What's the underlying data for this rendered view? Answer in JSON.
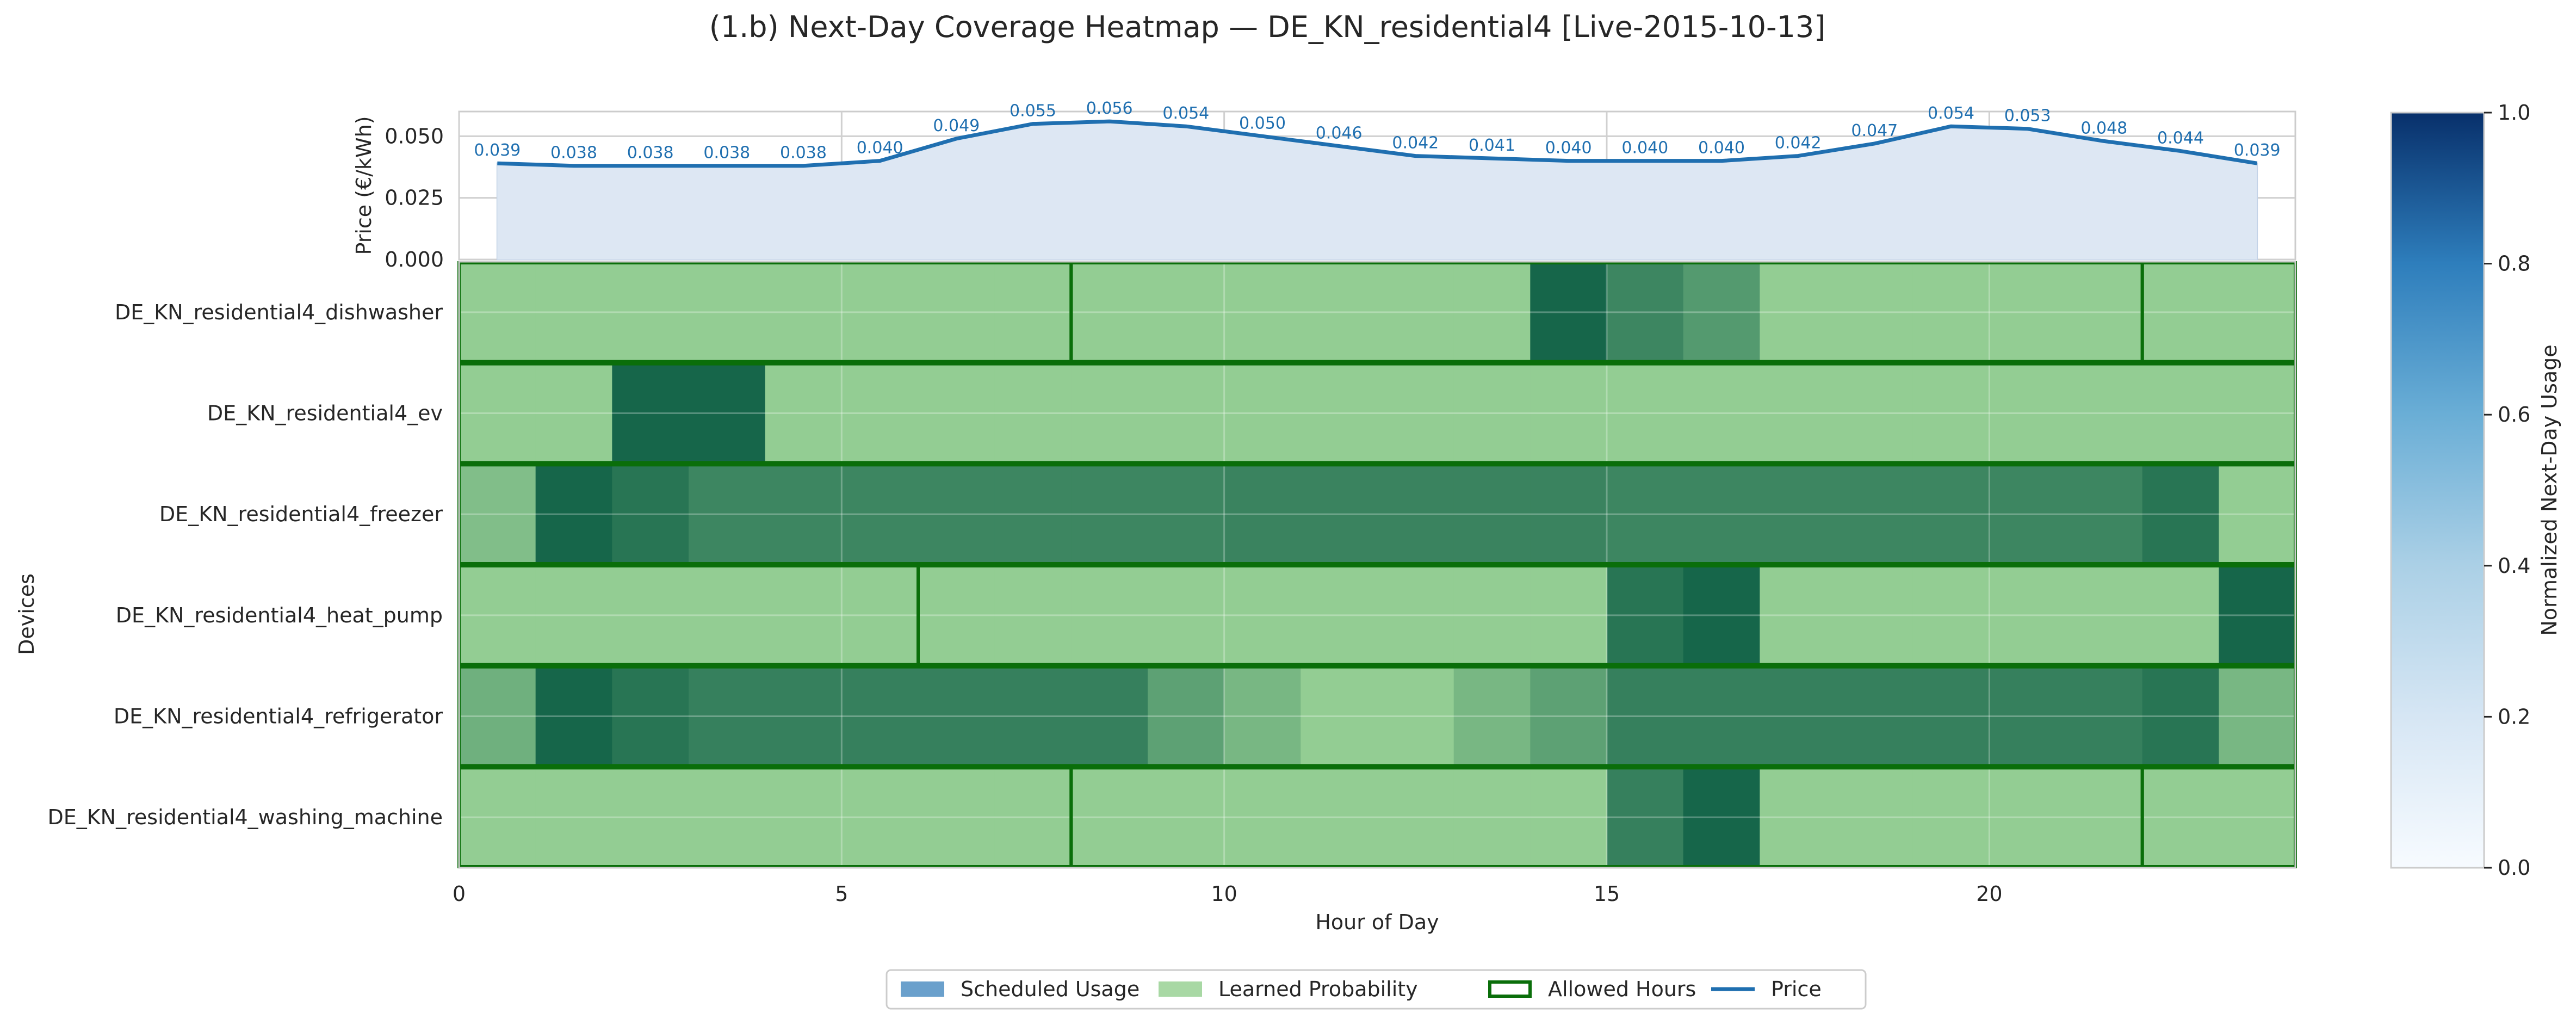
{
  "chart_data": {
    "type": "heatmap",
    "title": "(1.b) Next-Day Coverage Heatmap — DE_KN_residential4 [Live-2015-10-13]",
    "xlabel": "Hour of Day",
    "ylabel": "Devices",
    "x_ticks": [
      "0",
      "5",
      "10",
      "15",
      "20"
    ],
    "xlim": [
      0,
      24
    ],
    "grid": true,
    "legend_position": "bottom-center",
    "price_panel": {
      "ylabel": "Price (€/kWh)",
      "ylim": [
        0,
        0.06
      ],
      "y_ticks": [
        "0.000",
        "0.025",
        "0.050"
      ],
      "hours": [
        0.5,
        1.5,
        2.5,
        3.5,
        4.5,
        5.5,
        6.5,
        7.5,
        8.5,
        9.5,
        10.5,
        11.5,
        12.5,
        13.5,
        14.5,
        15.5,
        16.5,
        17.5,
        18.5,
        19.5,
        20.5,
        21.5,
        22.5,
        23.5
      ],
      "values": [
        0.039,
        0.038,
        0.038,
        0.038,
        0.038,
        0.04,
        0.049,
        0.055,
        0.056,
        0.054,
        0.05,
        0.046,
        0.042,
        0.041,
        0.04,
        0.04,
        0.04,
        0.042,
        0.047,
        0.054,
        0.053,
        0.048,
        0.044,
        0.039
      ],
      "labels": [
        "0.039",
        "0.038",
        "0.038",
        "0.038",
        "0.038",
        "0.040",
        "0.049",
        "0.055",
        "0.056",
        "0.054",
        "0.050",
        "0.046",
        "0.042",
        "0.041",
        "0.040",
        "0.040",
        "0.040",
        "0.042",
        "0.047",
        "0.054",
        "0.053",
        "0.048",
        "0.044",
        "0.039"
      ]
    },
    "devices": [
      {
        "name": "DE_KN_residential4_dishwasher",
        "allowed_hours": [
          8,
          22
        ],
        "usage": [
          0.3,
          0.3,
          0.3,
          0.3,
          0.3,
          0.3,
          0.3,
          0.3,
          0.3,
          0.3,
          0.3,
          0.3,
          0.3,
          0.3,
          1.0,
          0.78,
          0.65,
          0.3,
          0.3,
          0.3,
          0.3,
          0.3,
          0.3,
          0.3
        ]
      },
      {
        "name": "DE_KN_residential4_ev",
        "allowed_hours": [
          0,
          24
        ],
        "usage": [
          0.3,
          0.3,
          1.0,
          1.0,
          0.3,
          0.3,
          0.3,
          0.3,
          0.3,
          0.3,
          0.3,
          0.3,
          0.3,
          0.3,
          0.3,
          0.3,
          0.3,
          0.3,
          0.3,
          0.3,
          0.3,
          0.3,
          0.3,
          0.3
        ]
      },
      {
        "name": "DE_KN_residential4_freezer",
        "allowed_hours": [
          0,
          24
        ],
        "usage": [
          0.4,
          1.0,
          0.9,
          0.78,
          0.78,
          0.78,
          0.78,
          0.78,
          0.78,
          0.78,
          0.8,
          0.8,
          0.8,
          0.8,
          0.8,
          0.78,
          0.78,
          0.78,
          0.78,
          0.78,
          0.78,
          0.78,
          0.9,
          0.3
        ]
      },
      {
        "name": "DE_KN_residential4_heat_pump",
        "allowed_hours": [
          6,
          24
        ],
        "usage": [
          0.3,
          0.3,
          0.3,
          0.3,
          0.3,
          0.3,
          0.3,
          0.3,
          0.3,
          0.3,
          0.3,
          0.3,
          0.3,
          0.3,
          0.3,
          0.9,
          1.0,
          0.3,
          0.3,
          0.3,
          0.3,
          0.3,
          0.3,
          1.0
        ]
      },
      {
        "name": "DE_KN_residential4_refrigerator",
        "allowed_hours": [
          0,
          24
        ],
        "usage": [
          0.5,
          1.0,
          0.9,
          0.82,
          0.82,
          0.82,
          0.82,
          0.82,
          0.82,
          0.6,
          0.45,
          0.3,
          0.3,
          0.45,
          0.6,
          0.82,
          0.82,
          0.82,
          0.82,
          0.82,
          0.82,
          0.82,
          0.9,
          0.45
        ]
      },
      {
        "name": "DE_KN_residential4_washing_machine",
        "allowed_hours": [
          8,
          22
        ],
        "usage": [
          0.3,
          0.3,
          0.3,
          0.3,
          0.3,
          0.3,
          0.3,
          0.3,
          0.3,
          0.3,
          0.3,
          0.3,
          0.3,
          0.3,
          0.3,
          0.82,
          1.0,
          0.3,
          0.3,
          0.3,
          0.3,
          0.3,
          0.3,
          0.3
        ]
      }
    ],
    "colorbar": {
      "label": "Normalized Next-Day Usage",
      "ticks": [
        "0.0",
        "0.2",
        "0.4",
        "0.6",
        "0.8",
        "1.0"
      ],
      "range": [
        0,
        1
      ]
    },
    "legend": [
      {
        "label": "Scheduled Usage",
        "kind": "patch",
        "color": "#6aa0cc"
      },
      {
        "label": "Learned Probability",
        "kind": "patch",
        "color": "#a8d8a4"
      },
      {
        "label": "Allowed Hours",
        "kind": "outline",
        "color": "#0a6e0a"
      },
      {
        "label": "Price",
        "kind": "line",
        "color": "#1f6fb0"
      }
    ],
    "colors": {
      "price_line": "#1f6fb0",
      "price_fill": "#dde7f3",
      "allowed_outline": "#0a6e0a",
      "heat_low": "#93cd93",
      "heat_high": "#16664a"
    }
  }
}
